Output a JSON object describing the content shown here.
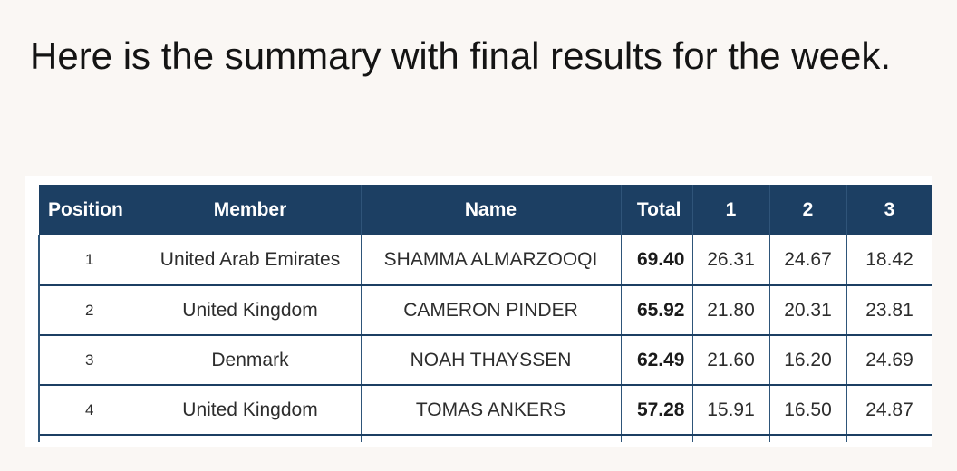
{
  "message": {
    "text": "Here is the summary with final results for the week."
  },
  "table": {
    "headers": {
      "position": "Position",
      "member": "Member",
      "name": "Name",
      "total": "Total",
      "round1": "1",
      "round2": "2",
      "round3": "3"
    },
    "rows": [
      {
        "position": "1",
        "member": "United Arab Emirates",
        "name": "SHAMMA ALMARZOOQI",
        "total": "69.40",
        "r1": "26.31",
        "r2": "24.67",
        "r3": "18.42"
      },
      {
        "position": "2",
        "member": "United Kingdom",
        "name": "CAMERON PINDER",
        "total": "65.92",
        "r1": "21.80",
        "r2": "20.31",
        "r3": "23.81"
      },
      {
        "position": "3",
        "member": "Denmark",
        "name": "NOAH THAYSSEN",
        "total": "62.49",
        "r1": "21.60",
        "r2": "16.20",
        "r3": "24.69"
      },
      {
        "position": "4",
        "member": "United Kingdom",
        "name": "TOMAS ANKERS",
        "total": "57.28",
        "r1": "15.91",
        "r2": "16.50",
        "r3": "24.87"
      }
    ]
  },
  "colors": {
    "header_bg": "#1c3f63",
    "page_bg": "#faf7f4",
    "border": "#2e5579"
  }
}
